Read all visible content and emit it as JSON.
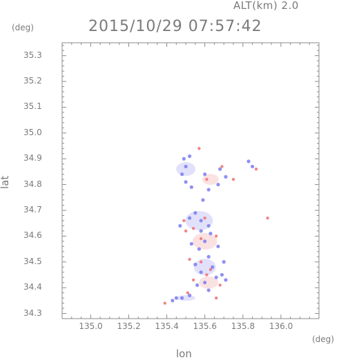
{
  "header": {
    "altitude_label": "ALT(km) 2.0",
    "timestamp": "2015/10/29 07:57:42",
    "y_unit": "(deg)",
    "x_unit": "(deg)"
  },
  "chart_data": {
    "type": "scatter",
    "xlabel": "lon",
    "ylabel": "lat",
    "xlim": [
      134.85,
      136.2
    ],
    "ylim": [
      34.28,
      35.35
    ],
    "x_ticks": [
      "135.0",
      "135.2",
      "135.4",
      "135.6",
      "135.8",
      "136.0"
    ],
    "x_tick_values": [
      135.0,
      135.2,
      135.4,
      135.6,
      135.8,
      136.0
    ],
    "y_ticks": [
      "34.3",
      "34.4",
      "34.5",
      "34.6",
      "34.7",
      "34.8",
      "34.9",
      "35.0",
      "35.1",
      "35.2",
      "35.3"
    ],
    "y_tick_values": [
      34.3,
      34.4,
      34.5,
      34.6,
      34.7,
      34.8,
      34.9,
      35.0,
      35.1,
      35.2,
      35.3
    ],
    "grid": false,
    "colors": {
      "axis": "#8a8a8a",
      "text": "#7a7a7a",
      "blue": "#7b7bf0",
      "red": "#f07070",
      "pale_blue": "#c8c8f8",
      "pale_red": "#f8caca"
    },
    "series": [
      {
        "color": "#7b7bf0",
        "points": [
          [
            135.49,
            34.9
          ],
          [
            135.52,
            34.91
          ],
          [
            135.5,
            34.87
          ],
          [
            135.48,
            34.84
          ],
          [
            135.5,
            34.81
          ],
          [
            135.53,
            34.79
          ],
          [
            135.6,
            34.84
          ],
          [
            135.62,
            34.78
          ],
          [
            135.59,
            34.74
          ],
          [
            135.68,
            34.86
          ],
          [
            135.71,
            34.83
          ],
          [
            135.67,
            34.8
          ],
          [
            135.83,
            34.89
          ],
          [
            135.85,
            34.87
          ],
          [
            135.55,
            34.69
          ],
          [
            135.52,
            34.67
          ],
          [
            135.58,
            34.66
          ],
          [
            135.62,
            34.64
          ],
          [
            135.47,
            34.64
          ],
          [
            135.63,
            34.61
          ],
          [
            135.6,
            34.58
          ],
          [
            135.67,
            34.56
          ],
          [
            135.53,
            34.57
          ],
          [
            135.57,
            34.55
          ],
          [
            135.55,
            34.49
          ],
          [
            135.58,
            34.46
          ],
          [
            135.64,
            34.48
          ],
          [
            135.66,
            34.44
          ],
          [
            135.69,
            34.45
          ],
          [
            135.71,
            34.43
          ],
          [
            135.6,
            34.42
          ],
          [
            135.56,
            34.41
          ],
          [
            135.62,
            34.39
          ],
          [
            135.45,
            34.36
          ],
          [
            135.48,
            34.36
          ],
          [
            135.52,
            34.37
          ],
          [
            135.7,
            34.5
          ],
          [
            135.62,
            34.52
          ],
          [
            135.58,
            34.62
          ],
          [
            135.43,
            34.35
          ]
        ]
      },
      {
        "color": "#f07070",
        "points": [
          [
            135.57,
            34.94
          ],
          [
            135.61,
            34.82
          ],
          [
            135.75,
            34.82
          ],
          [
            135.69,
            34.87
          ],
          [
            135.87,
            34.86
          ],
          [
            135.93,
            34.67
          ],
          [
            135.6,
            34.67
          ],
          [
            135.49,
            34.66
          ],
          [
            135.58,
            34.59
          ],
          [
            135.66,
            34.6
          ],
          [
            135.54,
            34.63
          ],
          [
            135.52,
            34.51
          ],
          [
            135.61,
            34.45
          ],
          [
            135.63,
            34.47
          ],
          [
            135.54,
            34.43
          ],
          [
            135.68,
            34.41
          ],
          [
            135.39,
            34.34
          ],
          [
            135.51,
            34.38
          ],
          [
            135.66,
            34.36
          ],
          [
            135.58,
            34.5
          ],
          [
            135.5,
            34.62
          ]
        ]
      }
    ]
  }
}
